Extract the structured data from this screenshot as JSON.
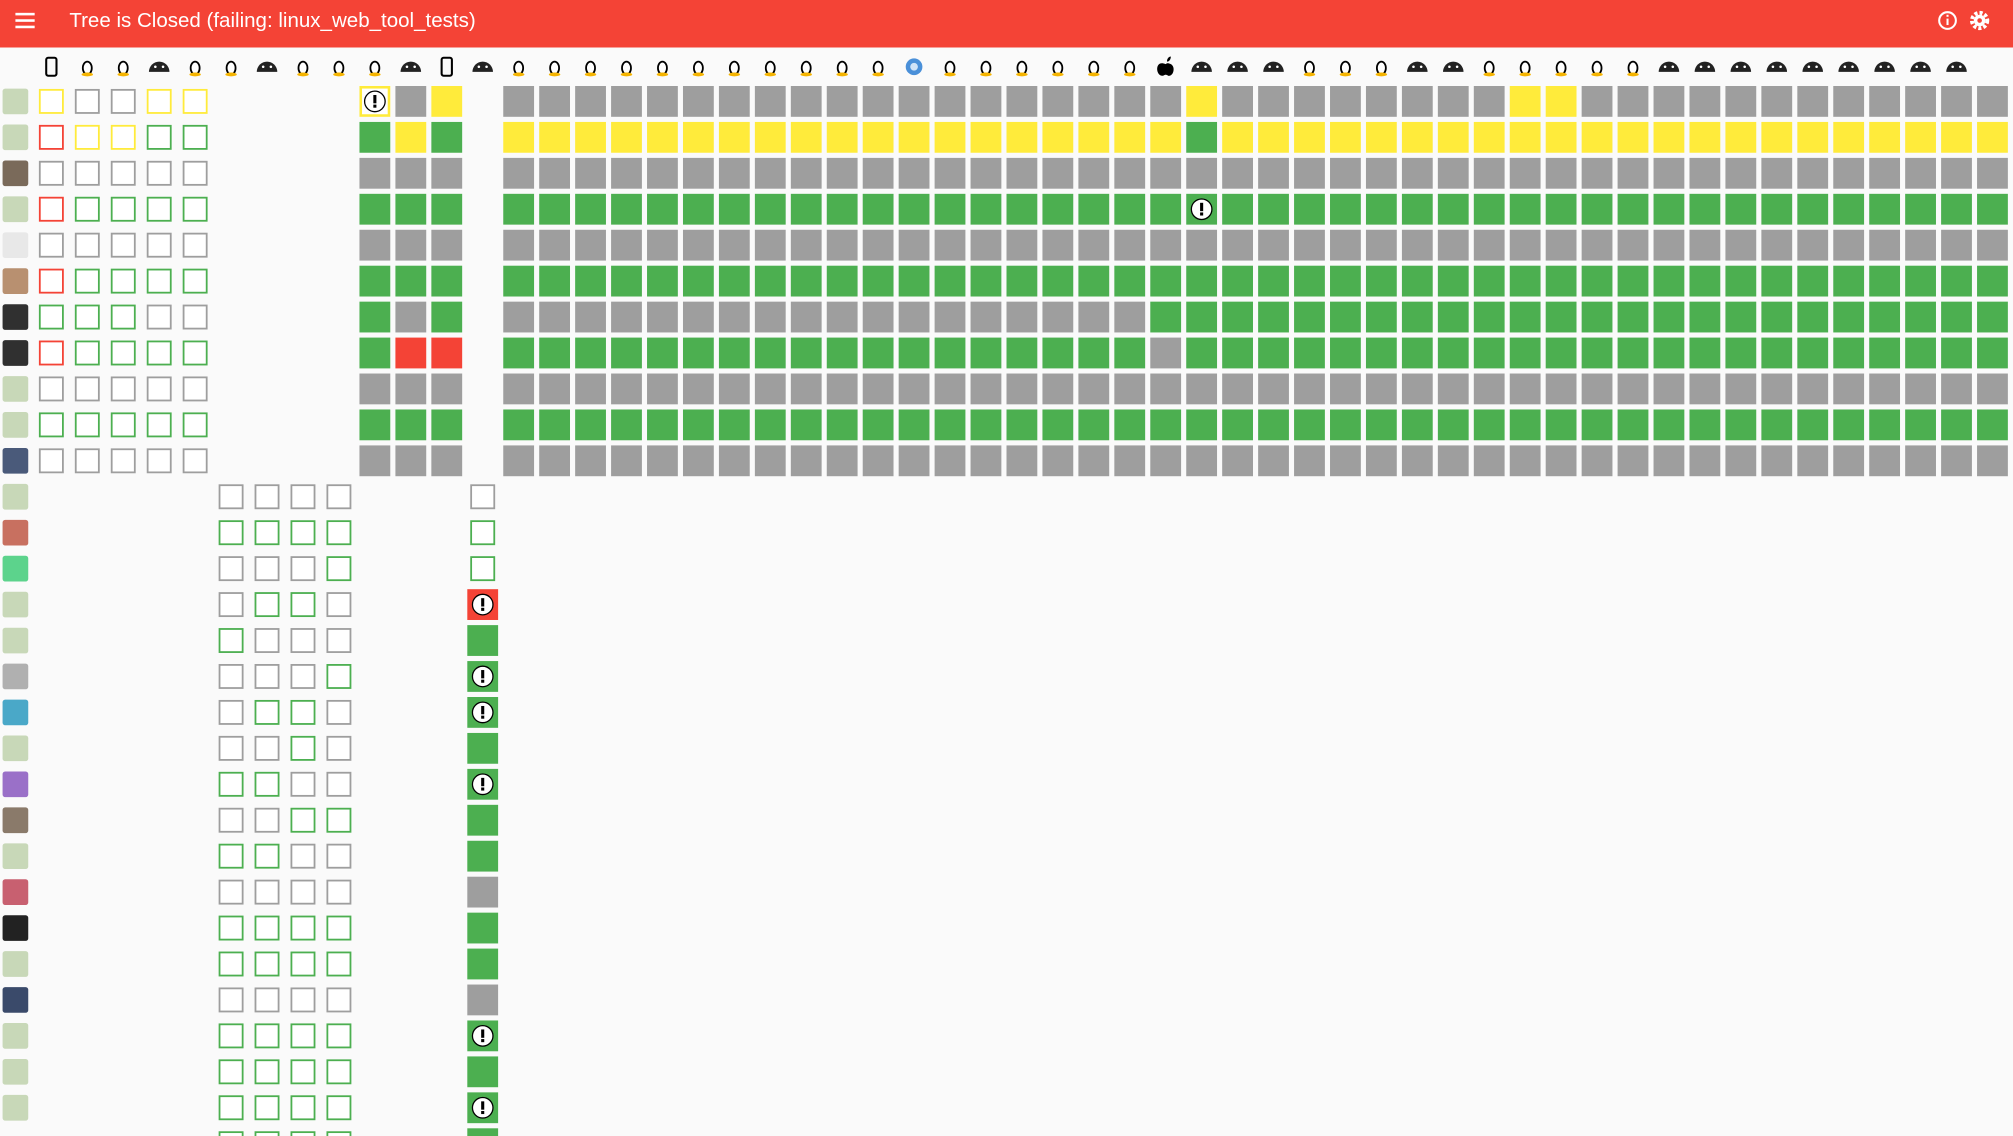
{
  "header": {
    "title": "Tree is Closed (failing: linux_web_tool_tests)"
  }
}
